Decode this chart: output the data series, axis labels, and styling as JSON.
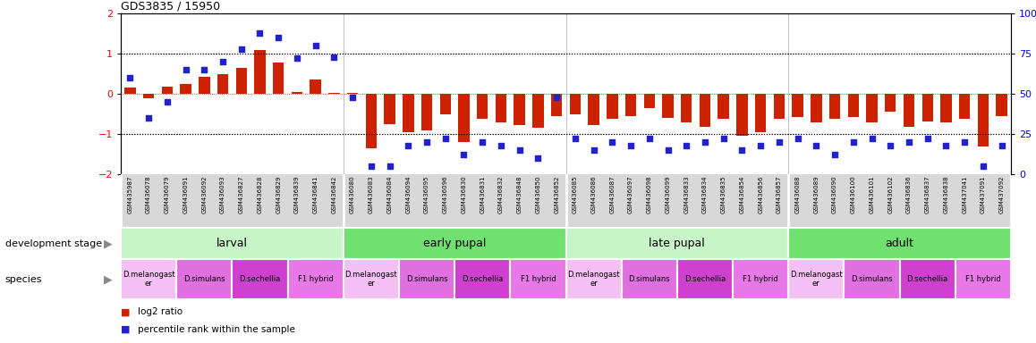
{
  "title": "GDS3835 / 15950",
  "samples": [
    "GSM435987",
    "GSM436078",
    "GSM436079",
    "GSM436091",
    "GSM436092",
    "GSM436093",
    "GSM436827",
    "GSM436828",
    "GSM436829",
    "GSM436839",
    "GSM436841",
    "GSM436842",
    "GSM436080",
    "GSM436083",
    "GSM436084",
    "GSM436094",
    "GSM436095",
    "GSM436096",
    "GSM436830",
    "GSM436831",
    "GSM436832",
    "GSM436848",
    "GSM436850",
    "GSM436852",
    "GSM436085",
    "GSM436086",
    "GSM436087",
    "GSM436097",
    "GSM436098",
    "GSM436099",
    "GSM436833",
    "GSM436834",
    "GSM436835",
    "GSM436854",
    "GSM436856",
    "GSM436857",
    "GSM436088",
    "GSM436089",
    "GSM436090",
    "GSM436100",
    "GSM436101",
    "GSM436102",
    "GSM436836",
    "GSM436837",
    "GSM436838",
    "GSM437041",
    "GSM437091",
    "GSM437092"
  ],
  "log2_ratio": [
    0.15,
    -0.1,
    0.18,
    0.25,
    0.42,
    0.48,
    0.65,
    1.08,
    0.78,
    0.05,
    0.35,
    0.02,
    0.02,
    -1.35,
    -0.75,
    -0.95,
    -0.9,
    -0.52,
    -1.2,
    -0.62,
    -0.7,
    -0.78,
    -0.85,
    -0.55,
    -0.52,
    -0.78,
    -0.62,
    -0.55,
    -0.35,
    -0.6,
    -0.72,
    -0.82,
    -0.62,
    -1.05,
    -0.95,
    -0.62,
    -0.58,
    -0.72,
    -0.62,
    -0.58,
    -0.72,
    -0.45,
    -0.82,
    -0.68,
    -0.72,
    -0.62,
    -1.3,
    -0.55
  ],
  "percentile": [
    60,
    35,
    45,
    65,
    65,
    70,
    78,
    88,
    85,
    72,
    80,
    73,
    48,
    5,
    5,
    18,
    20,
    22,
    12,
    20,
    18,
    15,
    10,
    48,
    22,
    15,
    20,
    18,
    22,
    15,
    18,
    20,
    22,
    15,
    18,
    20,
    22,
    18,
    12,
    20,
    22,
    18,
    20,
    22,
    18,
    20,
    5,
    18
  ],
  "development_stage_groups": [
    {
      "label": "larval",
      "start": 0,
      "end": 12,
      "color": "#c8f5c8"
    },
    {
      "label": "early pupal",
      "start": 12,
      "end": 24,
      "color": "#70e070"
    },
    {
      "label": "late pupal",
      "start": 24,
      "end": 36,
      "color": "#c8f5c8"
    },
    {
      "label": "adult",
      "start": 36,
      "end": 48,
      "color": "#70e070"
    }
  ],
  "species_groups": [
    {
      "label": "D.melanogast\ner",
      "start": 0,
      "end": 3,
      "color": "#f5c0f5"
    },
    {
      "label": "D.simulans",
      "start": 3,
      "end": 6,
      "color": "#e070e0"
    },
    {
      "label": "D.sechellia",
      "start": 6,
      "end": 9,
      "color": "#d040d0"
    },
    {
      "label": "F1 hybrid",
      "start": 9,
      "end": 12,
      "color": "#e878e8"
    },
    {
      "label": "D.melanogast\ner",
      "start": 12,
      "end": 15,
      "color": "#f5c0f5"
    },
    {
      "label": "D.simulans",
      "start": 15,
      "end": 18,
      "color": "#e070e0"
    },
    {
      "label": "D.sechellia",
      "start": 18,
      "end": 21,
      "color": "#d040d0"
    },
    {
      "label": "F1 hybrid",
      "start": 21,
      "end": 24,
      "color": "#e878e8"
    },
    {
      "label": "D.melanogast\ner",
      "start": 24,
      "end": 27,
      "color": "#f5c0f5"
    },
    {
      "label": "D.simulans",
      "start": 27,
      "end": 30,
      "color": "#e070e0"
    },
    {
      "label": "D.sechellia",
      "start": 30,
      "end": 33,
      "color": "#d040d0"
    },
    {
      "label": "F1 hybrid",
      "start": 33,
      "end": 36,
      "color": "#e878e8"
    },
    {
      "label": "D.melanogast\ner",
      "start": 36,
      "end": 39,
      "color": "#f5c0f5"
    },
    {
      "label": "D.simulans",
      "start": 39,
      "end": 42,
      "color": "#e070e0"
    },
    {
      "label": "D.sechellia",
      "start": 42,
      "end": 45,
      "color": "#d040d0"
    },
    {
      "label": "F1 hybrid",
      "start": 45,
      "end": 48,
      "color": "#e878e8"
    }
  ],
  "bar_color": "#cc2200",
  "dot_color": "#2222cc",
  "ylim_left": [
    -2,
    2
  ],
  "ylim_right": [
    0,
    100
  ],
  "yticks_left": [
    -2,
    -1,
    0,
    1,
    2
  ],
  "yticks_right": [
    0,
    25,
    50,
    75,
    100
  ],
  "hlines": [
    -1,
    1
  ],
  "hline_pct": [
    25,
    75
  ],
  "legend_items": [
    {
      "label": "log2 ratio",
      "color": "#cc2200"
    },
    {
      "label": "percentile rank within the sample",
      "color": "#2222cc"
    }
  ],
  "bar_width": 0.6,
  "dot_size": 22
}
